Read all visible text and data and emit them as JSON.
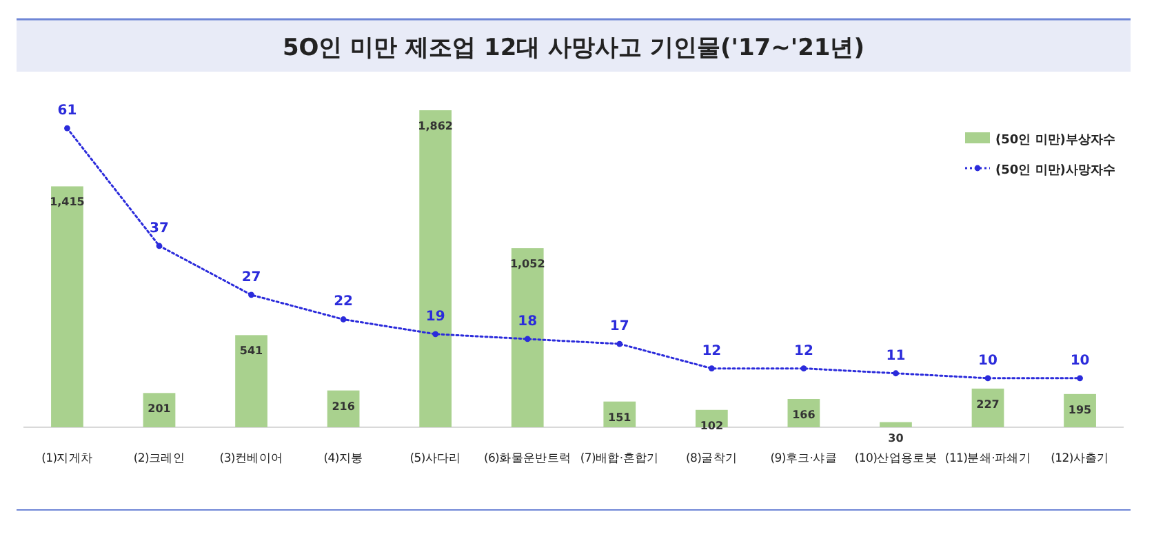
{
  "chart_data": {
    "type": "bar",
    "title": "5O인 미만 제조업 12대 사망사고 기인물('17~'21년)",
    "categories": [
      "(1)지게차",
      "(2)크레인",
      "(3)컨베이어",
      "(4)지붕",
      "(5)사다리",
      "(6)화물운반트럭",
      "(7)배합·혼합기",
      "(8)굴착기",
      "(9)후크·샤클",
      "(10)산업용로봇",
      "(11)분쇄·파쇄기",
      "(12)사출기"
    ],
    "series": [
      {
        "name": "(50인 미만)부상자수",
        "color": "#a9d18e",
        "values": [
          1415,
          201,
          541,
          216,
          1862,
          1052,
          151,
          102,
          166,
          30,
          227,
          195
        ],
        "value_labels": [
          "1,415",
          "201",
          "541",
          "216",
          "1,862",
          "1,052",
          "151",
          "102",
          "166",
          "30",
          "227",
          "195"
        ]
      },
      {
        "name": "(50인 미만)사망자수",
        "type": "line",
        "axis": "y2",
        "color": "#2b2bdb",
        "marker": "circle",
        "line_style": "dotted",
        "values": [
          61,
          37,
          27,
          22,
          19,
          18,
          17,
          12,
          12,
          11,
          10,
          10
        ]
      }
    ],
    "data_labels": true,
    "legend": "top right",
    "grid": false
  }
}
